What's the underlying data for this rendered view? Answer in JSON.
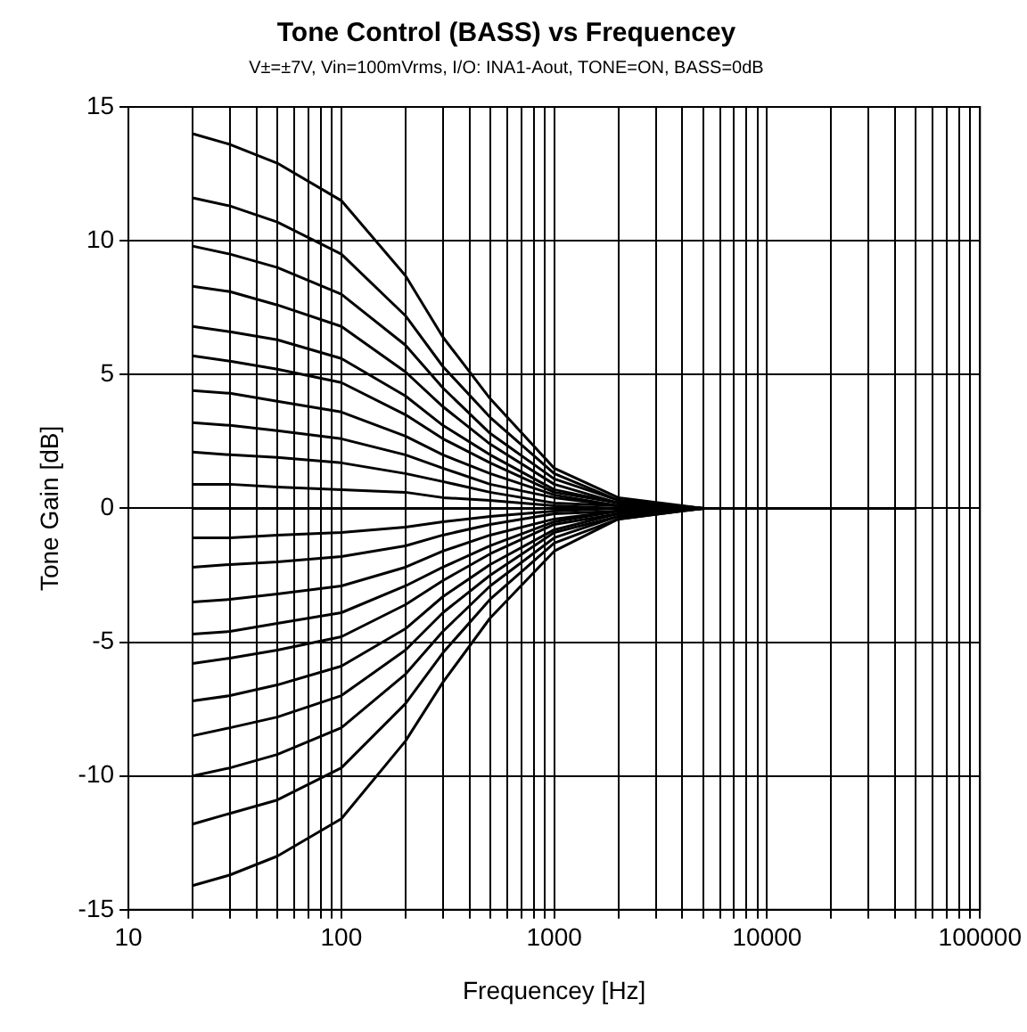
{
  "chart_data": {
    "type": "line",
    "title": "Tone Control (BASS) vs Frequencey",
    "subtitle": "V±=±7V, Vin=100mVrms, I/O: INA1-Aout, TONE=ON, BASS=0dB",
    "xlabel": "Frequencey [Hz]",
    "ylabel": "Tone Gain [dB]",
    "log": "x",
    "grid": true,
    "legend": false,
    "marker": "none",
    "line_style": "solid",
    "x": [
      20,
      30,
      50,
      100,
      200,
      300,
      500,
      1000,
      2000,
      5000,
      50000
    ],
    "xlim": [
      10,
      100000
    ],
    "xticks": [
      10,
      {
        "value": 20,
        "label": null
      },
      {
        "value": 30,
        "label": null
      },
      {
        "value": 40,
        "label": null
      },
      {
        "value": 50,
        "label": null
      },
      {
        "value": 60,
        "label": null
      },
      {
        "value": 70,
        "label": null
      },
      {
        "value": 80,
        "label": null
      },
      {
        "value": 90,
        "label": null
      },
      100,
      {
        "value": 200,
        "label": null
      },
      {
        "value": 300,
        "label": null
      },
      {
        "value": 400,
        "label": null
      },
      {
        "value": 500,
        "label": null
      },
      {
        "value": 600,
        "label": null
      },
      {
        "value": 700,
        "label": null
      },
      {
        "value": 800,
        "label": null
      },
      {
        "value": 900,
        "label": null
      },
      1000,
      {
        "value": 2000,
        "label": null
      },
      {
        "value": 3000,
        "label": null
      },
      {
        "value": 4000,
        "label": null
      },
      {
        "value": 5000,
        "label": null
      },
      {
        "value": 6000,
        "label": null
      },
      {
        "value": 7000,
        "label": null
      },
      {
        "value": 8000,
        "label": null
      },
      {
        "value": 9000,
        "label": null
      },
      10000,
      {
        "value": 20000,
        "label": null
      },
      {
        "value": 30000,
        "label": null
      },
      {
        "value": 40000,
        "label": null
      },
      {
        "value": 50000,
        "label": null
      },
      {
        "value": 60000,
        "label": null
      },
      {
        "value": 70000,
        "label": null
      },
      {
        "value": 80000,
        "label": null
      },
      {
        "value": 90000,
        "label": null
      },
      100000
    ],
    "ylim": [
      -15,
      15
    ],
    "yticks": [
      -15,
      -10,
      -5,
      0,
      5,
      10,
      15
    ],
    "series": [
      {
        "color": "#000000",
        "values": [
          14.0,
          13.6,
          12.9,
          11.5,
          8.7,
          6.4,
          4.1,
          1.5,
          0.4,
          0,
          0
        ]
      },
      {
        "color": "#000000",
        "values": [
          11.6,
          11.3,
          10.7,
          9.5,
          7.2,
          5.3,
          3.4,
          1.3,
          0.3,
          0,
          0
        ]
      },
      {
        "color": "#000000",
        "values": [
          9.8,
          9.5,
          9.0,
          8.0,
          6.1,
          4.5,
          2.8,
          1.1,
          0.3,
          0,
          0
        ]
      },
      {
        "color": "#000000",
        "values": [
          8.3,
          8.1,
          7.6,
          6.8,
          5.1,
          3.8,
          2.4,
          0.9,
          0.2,
          0,
          0
        ]
      },
      {
        "color": "#000000",
        "values": [
          6.8,
          6.6,
          6.3,
          5.6,
          4.2,
          3.1,
          2.0,
          0.7,
          0.2,
          0,
          0
        ]
      },
      {
        "color": "#000000",
        "values": [
          5.7,
          5.5,
          5.2,
          4.7,
          3.5,
          2.6,
          1.7,
          0.6,
          0.2,
          0,
          0
        ]
      },
      {
        "color": "#000000",
        "values": [
          4.4,
          4.3,
          4.0,
          3.6,
          2.7,
          2.0,
          1.3,
          0.5,
          0.1,
          0,
          0
        ]
      },
      {
        "color": "#000000",
        "values": [
          3.2,
          3.1,
          2.9,
          2.6,
          2.0,
          1.5,
          0.9,
          0.4,
          0.1,
          0,
          0
        ]
      },
      {
        "color": "#000000",
        "values": [
          2.1,
          2.0,
          1.9,
          1.7,
          1.3,
          1.0,
          0.6,
          0.2,
          0.1,
          0,
          0
        ]
      },
      {
        "color": "#000000",
        "values": [
          0.9,
          0.9,
          0.8,
          0.7,
          0.6,
          0.4,
          0.3,
          0.1,
          0,
          0,
          0
        ]
      },
      {
        "color": "#000000",
        "values": [
          0,
          0,
          0,
          0,
          0,
          0,
          0,
          0,
          0,
          0,
          0
        ]
      },
      {
        "color": "#000000",
        "values": [
          -1.1,
          -1.1,
          -1.0,
          -0.9,
          -0.7,
          -0.5,
          -0.3,
          -0.1,
          0,
          0,
          0
        ]
      },
      {
        "color": "#000000",
        "values": [
          -2.2,
          -2.1,
          -2.0,
          -1.8,
          -1.4,
          -1.0,
          -0.6,
          -0.2,
          -0.1,
          0,
          0
        ]
      },
      {
        "color": "#000000",
        "values": [
          -3.5,
          -3.4,
          -3.2,
          -2.9,
          -2.2,
          -1.6,
          -1.0,
          -0.4,
          -0.1,
          0,
          0
        ]
      },
      {
        "color": "#000000",
        "values": [
          -4.7,
          -4.6,
          -4.3,
          -3.9,
          -2.9,
          -2.2,
          -1.4,
          -0.5,
          -0.1,
          0,
          0
        ]
      },
      {
        "color": "#000000",
        "values": [
          -5.8,
          -5.6,
          -5.3,
          -4.8,
          -3.6,
          -2.7,
          -1.7,
          -0.6,
          -0.2,
          0,
          0
        ]
      },
      {
        "color": "#000000",
        "values": [
          -7.2,
          -7.0,
          -6.6,
          -5.9,
          -4.5,
          -3.3,
          -2.1,
          -0.8,
          -0.2,
          0,
          0
        ]
      },
      {
        "color": "#000000",
        "values": [
          -8.5,
          -8.2,
          -7.8,
          -7.0,
          -5.3,
          -3.9,
          -2.5,
          -0.9,
          -0.3,
          0,
          0
        ]
      },
      {
        "color": "#000000",
        "values": [
          -10.0,
          -9.7,
          -9.2,
          -8.2,
          -6.2,
          -4.6,
          -2.9,
          -1.1,
          -0.3,
          0,
          0
        ]
      },
      {
        "color": "#000000",
        "values": [
          -11.8,
          -11.4,
          -10.9,
          -9.7,
          -7.3,
          -5.4,
          -3.4,
          -1.3,
          -0.4,
          0,
          0
        ]
      },
      {
        "color": "#000000",
        "values": [
          -14.1,
          -13.7,
          -13.0,
          -11.6,
          -8.7,
          -6.5,
          -4.1,
          -1.6,
          -0.4,
          0,
          0
        ]
      }
    ]
  }
}
